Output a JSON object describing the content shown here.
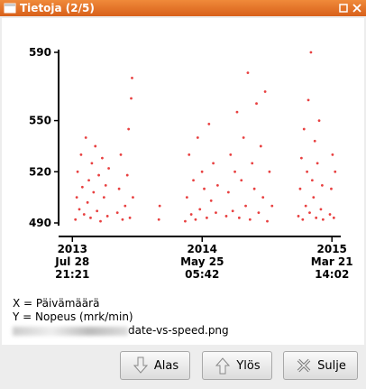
{
  "window": {
    "title": "Tietoja (2/5)"
  },
  "chart_data": {
    "type": "scatter",
    "color": "#e00000",
    "xlim": [
      "2013-06-27",
      "2015-04-11"
    ],
    "xticks": [
      {
        "value": "2013-07-28T21:21",
        "label": [
          "2013",
          "Jul 28",
          "21:21"
        ]
      },
      {
        "value": "2014-05-25T05:42",
        "label": [
          "2014",
          "May 25",
          "05:42"
        ]
      },
      {
        "value": "2015-03-21T14:02",
        "label": [
          "2015",
          "Mar 21",
          "14:02"
        ]
      }
    ],
    "ylim": [
      490,
      590
    ],
    "yticks": [
      490,
      520,
      550,
      590
    ],
    "x": [
      "2013-08-05",
      "2013-08-08",
      "2013-08-10",
      "2013-08-14",
      "2013-08-18",
      "2013-08-21",
      "2013-08-25",
      "2013-08-29",
      "2013-09-02",
      "2013-09-05",
      "2013-09-09",
      "2013-09-12",
      "2013-09-16",
      "2013-09-20",
      "2013-09-24",
      "2013-09-28",
      "2013-10-02",
      "2013-10-06",
      "2013-10-10",
      "2013-10-14",
      "2013-10-18",
      "2013-10-21",
      "2013-11-10",
      "2013-11-14",
      "2013-11-18",
      "2013-11-22",
      "2013-11-28",
      "2013-12-03",
      "2013-12-06",
      "2013-12-09",
      "2013-12-12",
      "2013-12-14",
      "2013-12-16",
      "2014-02-14",
      "2014-02-16",
      "2014-04-16",
      "2014-04-20",
      "2014-04-25",
      "2014-04-30",
      "2014-05-05",
      "2014-05-10",
      "2014-05-15",
      "2014-05-20",
      "2014-05-25",
      "2014-05-30",
      "2014-06-05",
      "2014-06-10",
      "2014-06-15",
      "2014-06-20",
      "2014-06-26",
      "2014-06-30",
      "2014-07-20",
      "2014-07-25",
      "2014-07-30",
      "2014-08-04",
      "2014-08-09",
      "2014-08-14",
      "2014-08-19",
      "2014-08-24",
      "2014-08-29",
      "2014-09-03",
      "2014-09-08",
      "2014-09-13",
      "2014-09-18",
      "2014-09-23",
      "2014-09-28",
      "2014-10-03",
      "2014-10-08",
      "2014-10-13",
      "2014-10-18",
      "2014-10-23",
      "2014-10-28",
      "2014-11-03",
      "2015-01-03",
      "2015-01-07",
      "2015-01-10",
      "2015-01-13",
      "2015-01-16",
      "2015-01-20",
      "2015-01-23",
      "2015-01-26",
      "2015-01-29",
      "2015-02-01",
      "2015-02-04",
      "2015-02-07",
      "2015-02-10",
      "2015-02-13",
      "2015-02-16",
      "2015-02-20",
      "2015-02-24",
      "2015-02-27",
      "2015-03-01",
      "2015-03-17",
      "2015-03-20",
      "2015-03-23",
      "2015-03-26",
      "2015-03-29"
    ],
    "values": [
      492,
      505,
      520,
      498,
      530,
      511,
      495,
      540,
      502,
      515,
      493,
      525,
      508,
      535,
      497,
      518,
      491,
      528,
      505,
      512,
      494,
      522,
      496,
      510,
      530,
      492,
      500,
      518,
      545,
      493,
      563,
      575,
      505,
      492,
      500,
      491,
      505,
      530,
      495,
      515,
      492,
      540,
      498,
      520,
      510,
      493,
      548,
      503,
      525,
      496,
      512,
      494,
      508,
      530,
      497,
      520,
      555,
      493,
      515,
      540,
      500,
      578,
      492,
      525,
      510,
      560,
      496,
      535,
      505,
      567,
      491,
      520,
      500,
      494,
      510,
      528,
      492,
      545,
      500,
      520,
      562,
      496,
      590,
      515,
      505,
      538,
      493,
      525,
      550,
      498,
      512,
      492,
      495,
      510,
      530,
      493,
      520
    ]
  },
  "info": {
    "lines": [
      "X = Päivämäärä",
      "Y = Nopeus (mrk/min)"
    ],
    "file": "date-vs-speed.png"
  },
  "buttons": [
    "Alas",
    "Ylös",
    "Sulje"
  ]
}
